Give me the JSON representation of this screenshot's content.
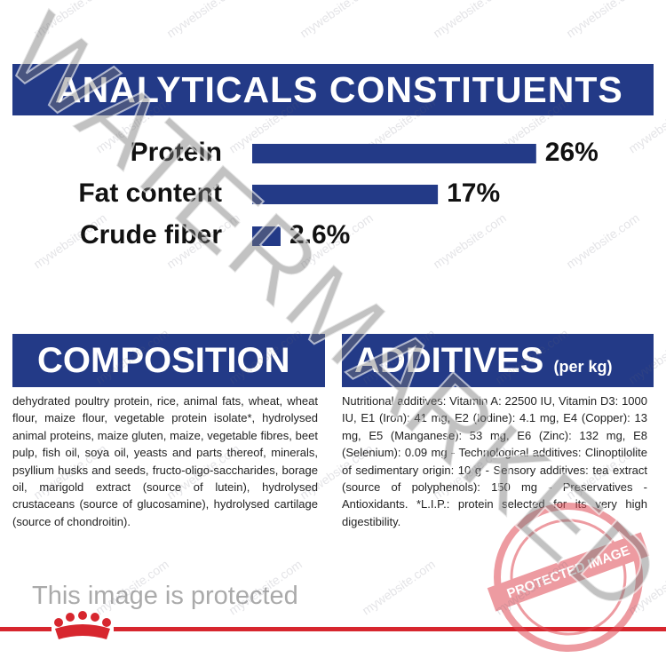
{
  "analyticals": {
    "title": "ANALYTICALS CONSTITUENTS",
    "labels": [
      "Protein",
      "Fat content",
      "Crude fiber"
    ],
    "values": [
      26,
      17,
      2.6
    ],
    "value_labels": [
      "26%",
      "17%",
      "2.6%"
    ],
    "color": "#233a87"
  },
  "composition": {
    "title": "COMPOSITION",
    "text": "dehydrated poultry protein, rice, animal fats, wheat, wheat flour, maize flour, vegetable protein isolate*, hydrolysed animal proteins, maize gluten, maize, vegetable fibres, beet pulp, fish oil, soya oil, yeasts and parts thereof, minerals, psyllium husks and seeds, fructo-oligo-saccharides, borage oil, marigold extract (source of lutein), hydrolysed crustaceans (source of glucosamine), hydrolysed cartilage (source of chondroitin)."
  },
  "additives": {
    "title": "ADDITIVES",
    "title_note": "(per kg)",
    "text": "Nutritional additives: Vitamin A: 22500 IU, Vitamin D3: 1000 IU, E1 (Iron): 41 mg, E2 (Iodine): 4.1 mg, E4 (Copper): 13 mg, E5 (Manganese): 53 mg, E6 (Zinc): 132 mg, E8 (Selenium): 0.09 mg - Technological additives: Clinoptilolite of sedimentary origin: 10 g - Sensory additives: tea extract (source of polyphenols): 150 mg - Preservatives - Antioxidants. *L.I.P.: protein selected for its very high digestibility."
  },
  "watermark": {
    "diagonal": "WATERMARKED",
    "notice": "This image is protected",
    "stamp": "PROTECTED IMAGE",
    "tile": "mywebsite.com"
  }
}
